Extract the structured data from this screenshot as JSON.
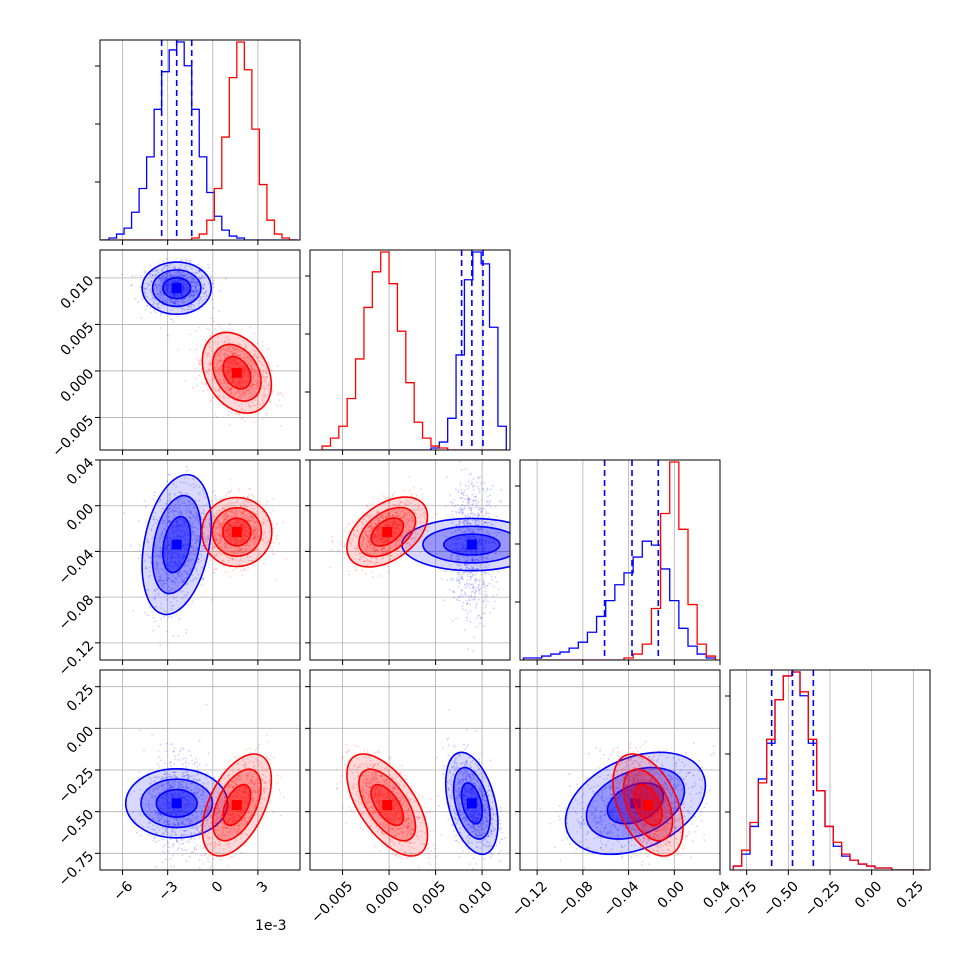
{
  "colors": {
    "series_a": "#0000ff",
    "series_b": "#ff0000",
    "grid": "#b0b0b0",
    "frame": "#000000"
  },
  "x_offset_label": "1e-3",
  "chart_data": {
    "type": "corner",
    "grid": true,
    "series": [
      {},
      {}
    ],
    "params": [
      {
        "range": [
          -7.5,
          5.8
        ],
        "ticks": [
          -6,
          -3,
          0,
          3
        ],
        "tick_labels": [
          "−6",
          "−3",
          "0",
          "3"
        ],
        "scale_multiplier": 0.001
      },
      {
        "range": [
          -0.0085,
          0.013
        ],
        "ticks": [
          -0.005,
          0.0,
          0.005,
          0.01
        ],
        "tick_labels": [
          "−0.005",
          "0.000",
          "0.005",
          "0.010"
        ]
      },
      {
        "range": [
          -0.135,
          0.04
        ],
        "ticks": [
          -0.12,
          -0.08,
          -0.04,
          0.0,
          0.04
        ],
        "tick_labels": [
          "−0.12",
          "−0.08",
          "−0.04",
          "0.00",
          "0.04"
        ]
      },
      {
        "range": [
          -0.85,
          0.35
        ],
        "ticks": [
          -0.75,
          -0.5,
          -0.25,
          0.0,
          0.25
        ],
        "tick_labels": [
          "−0.75",
          "−0.50",
          "−0.25",
          "0.00",
          "0.25"
        ]
      }
    ],
    "blue_quantiles": [
      [
        -3.4,
        -2.4,
        -1.4
      ],
      [
        0.0078,
        0.0089,
        0.0101
      ],
      [
        -0.061,
        -0.037,
        -0.014
      ],
      [
        -0.6,
        -0.475,
        -0.35
      ]
    ],
    "means": {
      "blue": [
        -2.4,
        0.0089,
        -0.034,
        -0.45
      ],
      "red": [
        1.6,
        -0.0002,
        -0.023,
        -0.46
      ]
    },
    "sigmas": {
      "blue": [
        0.9,
        0.0011,
        0.024,
        0.12
      ],
      "red": [
        0.9,
        0.0017,
        0.012,
        0.12
      ]
    },
    "correlations": {
      "blue": {
        "1-0": 0.0,
        "2-0": 0.3,
        "2-1": 0.0,
        "3-0": 0.0,
        "3-1": -0.4,
        "3-2": 0.35
      },
      "red": {
        "1-0": -0.3,
        "2-0": 0.0,
        "2-1": 0.45,
        "3-0": 0.5,
        "3-1": -0.6,
        "3-2": -0.45
      }
    },
    "hist_bins": [
      [
        -7.4,
        -6.9,
        -6.4,
        -5.9,
        -5.4,
        -4.9,
        -4.4,
        -3.9,
        -3.4,
        -2.9,
        -2.4,
        -1.9,
        -1.4,
        -0.9,
        -0.4,
        0.1,
        0.6,
        1.1,
        1.6,
        2.1,
        2.6,
        3.1,
        3.6,
        4.1,
        4.6,
        5.1,
        5.6
      ],
      [
        -0.0072,
        -0.0063,
        -0.0054,
        -0.0045,
        -0.0036,
        -0.0027,
        -0.0018,
        -0.0009,
        0.0,
        0.0009,
        0.0018,
        0.0027,
        0.0036,
        0.0045,
        0.0054,
        0.0063,
        0.0072,
        0.0081,
        0.009,
        0.0099,
        0.0108,
        0.0117,
        0.0126
      ],
      [
        -0.132,
        -0.124,
        -0.116,
        -0.108,
        -0.1,
        -0.092,
        -0.084,
        -0.076,
        -0.068,
        -0.06,
        -0.052,
        -0.044,
        -0.036,
        -0.028,
        -0.02,
        -0.012,
        -0.004,
        0.004,
        0.012,
        0.02,
        0.028,
        0.036
      ],
      [
        -0.83,
        -0.78,
        -0.73,
        -0.68,
        -0.63,
        -0.58,
        -0.53,
        -0.48,
        -0.43,
        -0.38,
        -0.33,
        -0.28,
        -0.23,
        -0.18,
        -0.13,
        -0.08,
        -0.03,
        0.02,
        0.07,
        0.12,
        0.17,
        0.22,
        0.27,
        0.32
      ]
    ],
    "hist_counts": {
      "blue": [
        [
          0,
          1,
          3,
          6,
          14,
          26,
          42,
          66,
          85,
          96,
          100,
          88,
          66,
          42,
          24,
          12,
          5,
          2,
          1,
          0,
          0,
          0,
          0,
          0,
          0,
          0
        ],
        [
          0,
          0,
          0,
          0,
          0,
          0,
          0,
          0,
          0,
          0,
          0,
          0,
          0,
          1,
          4,
          16,
          48,
          86,
          100,
          94,
          62,
          12
        ],
        [
          1,
          1,
          2,
          3,
          4,
          6,
          9,
          14,
          22,
          30,
          38,
          44,
          52,
          60,
          58,
          46,
          30,
          16,
          7,
          3,
          1
        ],
        [
          2,
          8,
          22,
          46,
          64,
          86,
          98,
          100,
          88,
          64,
          40,
          22,
          12,
          7,
          5,
          3,
          2,
          1,
          1,
          0,
          0,
          0,
          0
        ]
      ],
      "red": [
        [
          0,
          0,
          0,
          0,
          0,
          0,
          0,
          0,
          0,
          0,
          0,
          0,
          1,
          3,
          10,
          26,
          52,
          82,
          100,
          86,
          56,
          28,
          10,
          3,
          1,
          0
        ],
        [
          2,
          6,
          12,
          26,
          46,
          72,
          90,
          100,
          84,
          60,
          34,
          14,
          6,
          2,
          1,
          0,
          0,
          0,
          0,
          0,
          0,
          0
        ],
        [
          0,
          0,
          0,
          0,
          0,
          0,
          0,
          0,
          0,
          0,
          0,
          1,
          3,
          8,
          26,
          74,
          100,
          66,
          28,
          8,
          2
        ],
        [
          2,
          10,
          24,
          44,
          66,
          86,
          98,
          100,
          90,
          66,
          40,
          22,
          14,
          8,
          5,
          3,
          2,
          1,
          1,
          0,
          0,
          0,
          0
        ]
      ]
    }
  }
}
